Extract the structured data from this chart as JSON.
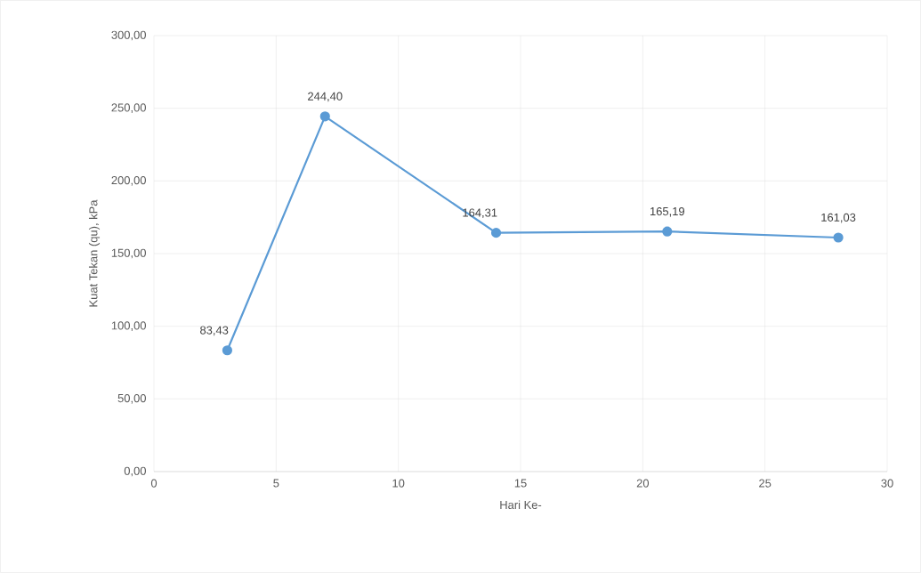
{
  "chart_data": {
    "type": "line",
    "xlabel": "Hari Ke-",
    "ylabel": "Kuat Tekan (qu), kPa",
    "x": [
      3,
      7,
      14,
      21,
      28
    ],
    "series": [
      {
        "color": "#5b9bd5",
        "values": [
          83.43,
          244.4,
          164.31,
          165.19,
          161.03
        ],
        "value_labels": [
          "83,43",
          "244,40",
          "164,31",
          "165,19",
          "161,03"
        ]
      }
    ],
    "xlim": [
      0,
      30
    ],
    "xticks": [
      0,
      5,
      10,
      15,
      20,
      25,
      30
    ],
    "ylim": [
      0,
      300
    ],
    "yticks": [
      {
        "value": 0,
        "label": "0,00"
      },
      {
        "value": 50,
        "label": "50,00"
      },
      {
        "value": 100,
        "label": "100,00"
      },
      {
        "value": 150,
        "label": "150,00"
      },
      {
        "value": 200,
        "label": "200,00"
      },
      {
        "value": 250,
        "label": "250,00"
      },
      {
        "value": 300,
        "label": "300,00"
      }
    ],
    "grid": true,
    "marker": "circle",
    "line_style": "solid"
  }
}
